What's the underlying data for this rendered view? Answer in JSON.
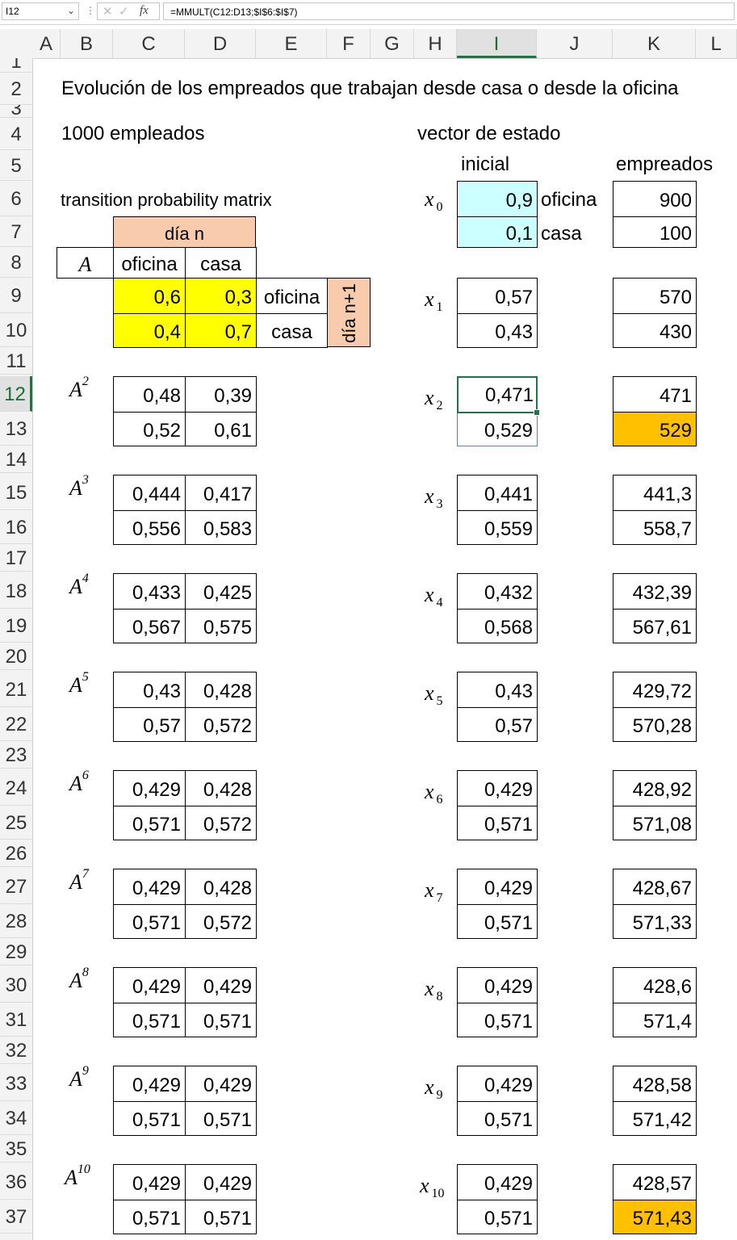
{
  "formula_bar": {
    "name_box": "I12",
    "formula": "=MMULT(C12:D13;$I$6:$I$7)",
    "fx_label": "fx"
  },
  "columns": [
    "A",
    "B",
    "C",
    "D",
    "E",
    "F",
    "G",
    "H",
    "I",
    "J",
    "K",
    "L"
  ],
  "selected_column": "I",
  "rows": [
    "1",
    "2",
    "3",
    "4",
    "5",
    "6",
    "7",
    "8",
    "9",
    "10",
    "11",
    "12",
    "13",
    "14",
    "15",
    "16",
    "17",
    "18",
    "19",
    "20",
    "21",
    "22",
    "23",
    "24",
    "25",
    "26",
    "27",
    "28",
    "29",
    "30",
    "31",
    "32",
    "33",
    "34",
    "35",
    "36",
    "37"
  ],
  "selected_row": "12",
  "sheet": {
    "title": "Evolución de los empreados que trabajan desde casa o desde la oficina",
    "employees": "1000 empleados",
    "vector_label": "vector de estado",
    "initial_label": "inicial",
    "employees_col_label": "empreados",
    "tpm_label": "transition probability matrix",
    "dia_n": "día n",
    "dia_n1": "día n+1",
    "matrix_name": "A",
    "col_oficina": "oficina",
    "col_casa": "casa",
    "row_oficina": "oficina",
    "row_casa": "casa",
    "a": [
      [
        "0,6",
        "0,3"
      ],
      [
        "0,4",
        "0,7"
      ]
    ],
    "x0": {
      "name": "x",
      "sub": "0",
      "v": [
        "0,9",
        "0,1"
      ],
      "labels": [
        "oficina",
        "casa"
      ],
      "emp": [
        "900",
        "100"
      ]
    },
    "x1": {
      "name": "x",
      "sub": "1",
      "v": [
        "0,57",
        "0,43"
      ],
      "emp": [
        "570",
        "430"
      ]
    },
    "powers": [
      {
        "exp": "2",
        "m": [
          [
            "0,48",
            "0,39"
          ],
          [
            "0,52",
            "0,61"
          ]
        ],
        "xsub": "2",
        "x": [
          "0,471",
          "0,529"
        ],
        "emp": [
          "471",
          "529"
        ]
      },
      {
        "exp": "3",
        "m": [
          [
            "0,444",
            "0,417"
          ],
          [
            "0,556",
            "0,583"
          ]
        ],
        "xsub": "3",
        "x": [
          "0,441",
          "0,559"
        ],
        "emp": [
          "441,3",
          "558,7"
        ]
      },
      {
        "exp": "4",
        "m": [
          [
            "0,433",
            "0,425"
          ],
          [
            "0,567",
            "0,575"
          ]
        ],
        "xsub": "4",
        "x": [
          "0,432",
          "0,568"
        ],
        "emp": [
          "432,39",
          "567,61"
        ]
      },
      {
        "exp": "5",
        "m": [
          [
            "0,43",
            "0,428"
          ],
          [
            "0,57",
            "0,572"
          ]
        ],
        "xsub": "5",
        "x": [
          "0,43",
          "0,57"
        ],
        "emp": [
          "429,72",
          "570,28"
        ]
      },
      {
        "exp": "6",
        "m": [
          [
            "0,429",
            "0,428"
          ],
          [
            "0,571",
            "0,572"
          ]
        ],
        "xsub": "6",
        "x": [
          "0,429",
          "0,571"
        ],
        "emp": [
          "428,92",
          "571,08"
        ]
      },
      {
        "exp": "7",
        "m": [
          [
            "0,429",
            "0,428"
          ],
          [
            "0,571",
            "0,572"
          ]
        ],
        "xsub": "7",
        "x": [
          "0,429",
          "0,571"
        ],
        "emp": [
          "428,67",
          "571,33"
        ]
      },
      {
        "exp": "8",
        "m": [
          [
            "0,429",
            "0,429"
          ],
          [
            "0,571",
            "0,571"
          ]
        ],
        "xsub": "8",
        "x": [
          "0,429",
          "0,571"
        ],
        "emp": [
          "428,6",
          "571,4"
        ]
      },
      {
        "exp": "9",
        "m": [
          [
            "0,429",
            "0,429"
          ],
          [
            "0,571",
            "0,571"
          ]
        ],
        "xsub": "9",
        "x": [
          "0,429",
          "0,571"
        ],
        "emp": [
          "428,58",
          "571,42"
        ]
      },
      {
        "exp": "10",
        "m": [
          [
            "0,429",
            "0,429"
          ],
          [
            "0,571",
            "0,571"
          ]
        ],
        "xsub": "10",
        "x": [
          "0,429",
          "0,571"
        ],
        "emp": [
          "428,57",
          "571,43"
        ]
      }
    ]
  },
  "colors": {
    "yellow": "#ffff00",
    "peach": "#f8cbad",
    "cyan": "#ccffff",
    "orange": "#ffc000",
    "selection": "#217346"
  }
}
